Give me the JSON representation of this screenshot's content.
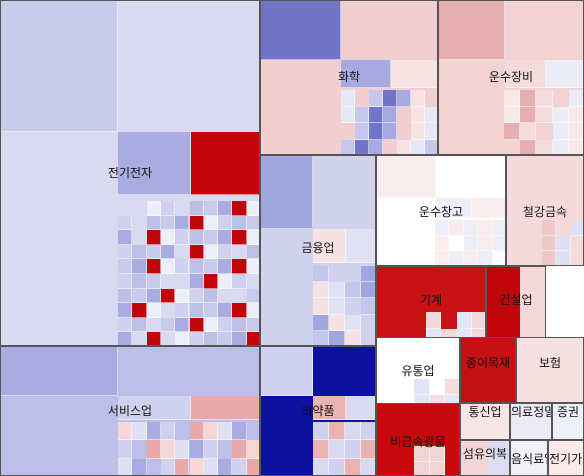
{
  "treemap": {
    "sectors": [
      {
        "name": "전기전자",
        "colors": [
          "#d9daef",
          "#c9cbea",
          "#a9ace0",
          "#c0060a",
          "#eceef8",
          "#cfd1ee",
          "#bcc0e6"
        ]
      },
      {
        "name": "서비스업",
        "colors": [
          "#bdbfe8",
          "#a9ace1",
          "#cfd1ee",
          "#e8a9ab",
          "#f5d7d8",
          "#dfe0f3"
        ]
      },
      {
        "name": "화학",
        "colors": [
          "#f1cfd0",
          "#7274c8",
          "#a7aae1",
          "#f7e3e3",
          "#e6e8f6",
          "#c5c8ea"
        ]
      },
      {
        "name": "운수장비",
        "colors": [
          "#f1d3d4",
          "#e6aeb0",
          "#f4dcdc",
          "#ececf7",
          "#f8e8e8"
        ]
      },
      {
        "name": "금융업",
        "colors": [
          "#d0d2ee",
          "#a2a6df",
          "#f5e3e4",
          "#e0e1f4",
          "#c3c6eb"
        ]
      },
      {
        "name": "운수창고",
        "colors": [
          "#ffffff",
          "#f9ecec",
          "#eeeef8"
        ]
      },
      {
        "name": "철강금속",
        "colors": [
          "#f6dadb",
          "#eec8c9",
          "#dfe0f3"
        ]
      },
      {
        "name": "의약품",
        "colors": [
          "#0c119f",
          "#cfd1ee",
          "#e9b3b4",
          "#d9daf0"
        ]
      },
      {
        "name": "기계",
        "colors": [
          "#c81214",
          "#f3d9da",
          "#e4e5f5"
        ]
      },
      {
        "name": "건설업",
        "colors": [
          "#c0060a",
          "#f4d7d8",
          "#e1aaac"
        ]
      },
      {
        "name": "유통업",
        "colors": [
          "#ffffff",
          "#e3e4f5",
          "#f5dcdd"
        ]
      },
      {
        "name": "종이목재",
        "colors": [
          "#c51014"
        ]
      },
      {
        "name": "보험",
        "colors": [
          "#f5e1e1"
        ]
      },
      {
        "name": "비금속광물",
        "colors": [
          "#c5090c",
          "#f1d4d5"
        ]
      },
      {
        "name": "통신업",
        "colors": [
          "#f8e6e6"
        ]
      },
      {
        "name": "의료정밀",
        "colors": [
          "#eceaf7"
        ]
      },
      {
        "name": "증권",
        "colors": [
          "#eef0f9"
        ]
      },
      {
        "name": "섬유의복",
        "colors": [
          "#f1d6d7",
          "#dcdcf2"
        ]
      },
      {
        "name": "음식료업",
        "colors": [
          "#f0f0f9"
        ]
      },
      {
        "name": "전기가스",
        "colors": [
          "#fbeaea"
        ]
      }
    ]
  }
}
